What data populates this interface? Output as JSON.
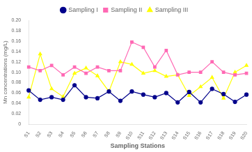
{
  "chart_data": {
    "type": "line",
    "xlabel": "Sampling Stations",
    "ylabel": "Mn concentrations (mg/L)",
    "categories": [
      "S1",
      "S2",
      "S3",
      "S4",
      "S5",
      "S6",
      "S7",
      "S8",
      "S9",
      "S10",
      "S11",
      "S12",
      "S13",
      "S14",
      "S15",
      "S16",
      "S17",
      "S18",
      "S19",
      "S20"
    ],
    "series": [
      {
        "name": "Sampling I",
        "color": "#00008B",
        "marker": "circle",
        "values": [
          0.065,
          0.047,
          0.052,
          0.047,
          0.075,
          0.052,
          0.05,
          0.063,
          0.045,
          0.063,
          0.057,
          0.052,
          0.06,
          0.042,
          0.062,
          0.042,
          0.068,
          0.058,
          0.043,
          0.057
        ]
      },
      {
        "name": "Sampling II",
        "color": "#FF69B4",
        "marker": "square",
        "values": [
          0.11,
          0.103,
          0.113,
          0.095,
          0.11,
          0.098,
          0.11,
          0.103,
          0.103,
          0.158,
          0.148,
          0.11,
          0.142,
          0.095,
          0.1,
          0.1,
          0.12,
          0.1,
          0.095,
          0.098
        ]
      },
      {
        "name": "Sampling III",
        "color": "#FFFF00",
        "marker": "triangle",
        "values": [
          0.052,
          0.135,
          0.068,
          0.053,
          0.098,
          0.108,
          0.093,
          0.063,
          0.12,
          0.115,
          0.098,
          0.103,
          0.092,
          0.095,
          0.055,
          0.072,
          0.09,
          0.05,
          0.1,
          0.113
        ]
      }
    ],
    "ylim": [
      0,
      0.2
    ],
    "yticks": [
      0,
      0.02,
      0.04,
      0.06,
      0.08,
      {
        "value": 0.1,
        "label": "0.10"
      },
      0.12,
      0.14,
      0.16,
      0.18,
      {
        "value": 0.2,
        "label": "0.20"
      }
    ],
    "grid": false,
    "legend": "top"
  }
}
